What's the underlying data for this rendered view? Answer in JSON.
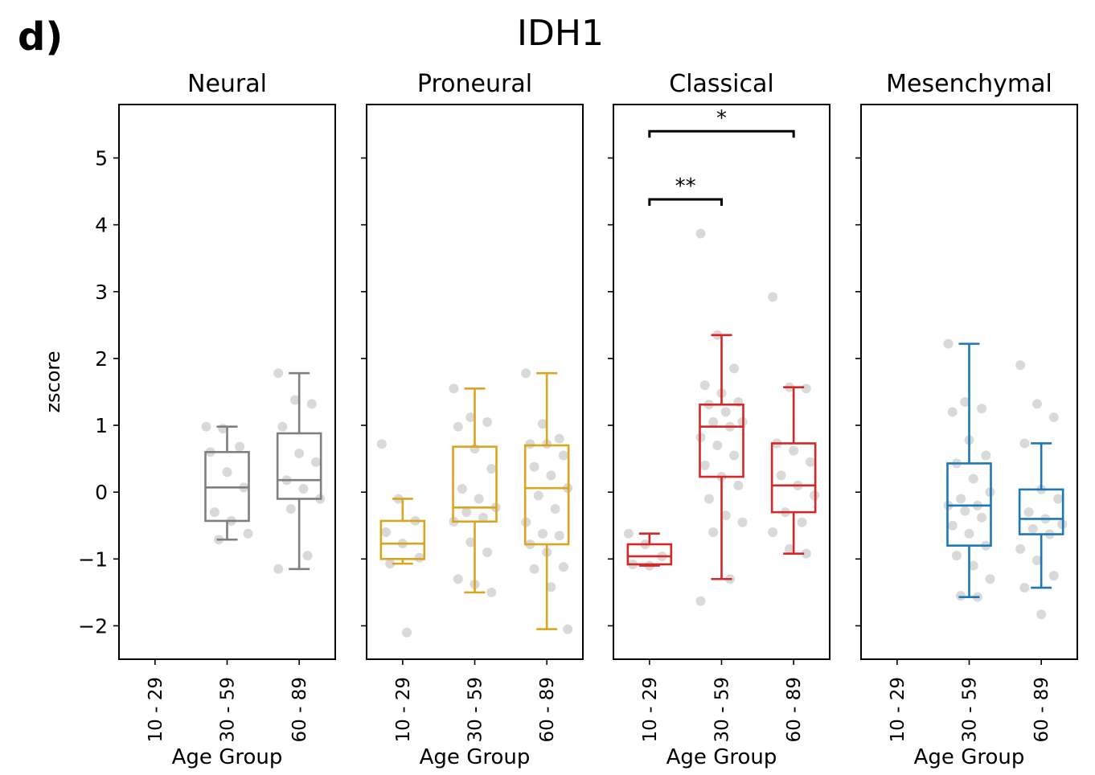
{
  "panel_label": "d)",
  "title": "IDH1",
  "ylabel": "zscore",
  "xlabel": "Age Group",
  "chart_data": {
    "type": "box",
    "title": "IDH1",
    "ylabel": "zscore",
    "xlabel": "Age Group",
    "categories": [
      "10 - 29",
      "30 - 59",
      "60 - 89"
    ],
    "ylim": [
      -2.5,
      5.8
    ],
    "yticks": [
      -2,
      -1,
      0,
      1,
      2,
      3,
      4,
      5
    ],
    "ytick_labels": [
      "−2",
      "−1",
      "0",
      "1",
      "2",
      "3",
      "4",
      "5"
    ],
    "point_color": "#d9d9d9",
    "panels": [
      {
        "name": "Neural",
        "color": "#7f7f7f",
        "groups": [
          null,
          {
            "whislo": -0.71,
            "q1": -0.43,
            "med": 0.07,
            "q3": 0.6,
            "whishi": 0.98,
            "points": [
              0.98,
              0.95,
              0.68,
              0.6,
              0.3,
              0.07,
              -0.3,
              -0.43,
              -0.62,
              -0.71
            ]
          },
          {
            "whislo": -1.15,
            "q1": -0.1,
            "med": 0.18,
            "q3": 0.88,
            "whishi": 1.78,
            "points": [
              1.78,
              1.38,
              1.32,
              0.98,
              0.58,
              0.45,
              0.18,
              0.05,
              -0.1,
              -0.25,
              -0.95,
              -1.15
            ]
          }
        ]
      },
      {
        "name": "Proneural",
        "color": "#daa520",
        "groups": [
          {
            "whislo": -1.07,
            "q1": -1.0,
            "med": -0.77,
            "q3": -0.43,
            "whishi": -0.1,
            "points": [
              0.72,
              -0.1,
              -0.43,
              -0.6,
              -0.77,
              -0.98,
              -1.07,
              -2.1
            ]
          },
          {
            "whislo": -1.5,
            "q1": -0.44,
            "med": -0.23,
            "q3": 0.68,
            "whishi": 1.55,
            "points": [
              1.55,
              1.12,
              1.05,
              0.98,
              0.65,
              0.35,
              0.05,
              -0.1,
              -0.23,
              -0.3,
              -0.38,
              -0.44,
              -0.75,
              -0.9,
              -1.3,
              -1.38,
              -1.5
            ]
          },
          {
            "whislo": -2.05,
            "q1": -0.78,
            "med": 0.06,
            "q3": 0.7,
            "whishi": 1.78,
            "points": [
              1.78,
              1.02,
              0.8,
              0.72,
              0.72,
              0.55,
              0.38,
              0.25,
              0.06,
              -0.05,
              -0.25,
              -0.45,
              -0.62,
              -0.65,
              -0.78,
              -0.9,
              -1.12,
              -1.15,
              -1.42,
              -2.05
            ]
          }
        ]
      },
      {
        "name": "Classical",
        "color": "#d62728",
        "groups": [
          {
            "whislo": -1.1,
            "q1": -1.08,
            "med": -0.96,
            "q3": -0.78,
            "whishi": -0.62,
            "points": [
              -0.62,
              -0.78,
              -0.96,
              -1.08,
              -1.1
            ]
          },
          {
            "whislo": -1.3,
            "q1": 0.23,
            "med": 0.98,
            "q3": 1.31,
            "whishi": 2.35,
            "points": [
              3.87,
              2.35,
              1.85,
              1.6,
              1.48,
              1.35,
              1.31,
              1.2,
              1.05,
              1.05,
              0.98,
              0.82,
              0.7,
              0.55,
              0.4,
              0.23,
              0.1,
              -0.1,
              -0.35,
              -0.45,
              -0.6,
              -1.3,
              -1.63
            ]
          },
          {
            "whislo": -0.92,
            "q1": -0.3,
            "med": 0.1,
            "q3": 0.73,
            "whishi": 1.57,
            "points": [
              2.92,
              1.57,
              1.55,
              0.73,
              0.62,
              0.45,
              0.25,
              0.1,
              -0.05,
              -0.3,
              -0.45,
              -0.6,
              -0.85,
              -0.92
            ]
          }
        ]
      },
      {
        "name": "Mesenchymal",
        "color": "#1f77b4",
        "groups": [
          null,
          {
            "whislo": -1.57,
            "q1": -0.8,
            "med": -0.2,
            "q3": 0.43,
            "whishi": 2.22,
            "points": [
              2.22,
              1.35,
              1.25,
              1.2,
              0.78,
              0.55,
              0.43,
              0.2,
              0.0,
              -0.1,
              -0.2,
              -0.2,
              -0.28,
              -0.38,
              -0.5,
              -0.62,
              -0.8,
              -0.95,
              -1.1,
              -1.3,
              -1.55,
              -1.57
            ]
          },
          {
            "whislo": -1.43,
            "q1": -0.63,
            "med": -0.4,
            "q3": 0.04,
            "whishi": 0.73,
            "points": [
              1.9,
              1.32,
              1.12,
              0.73,
              0.04,
              -0.1,
              -0.3,
              -0.4,
              -0.48,
              -0.55,
              -0.63,
              -0.85,
              -1.02,
              -1.25,
              -1.43,
              -1.83
            ]
          }
        ]
      }
    ],
    "annotations": [
      {
        "panel": "Classical",
        "from": "10 - 29",
        "to": "60 - 89",
        "y": 5.4,
        "label": "*"
      },
      {
        "panel": "Classical",
        "from": "10 - 29",
        "to": "30 - 59",
        "y": 4.38,
        "label": "**"
      }
    ]
  }
}
